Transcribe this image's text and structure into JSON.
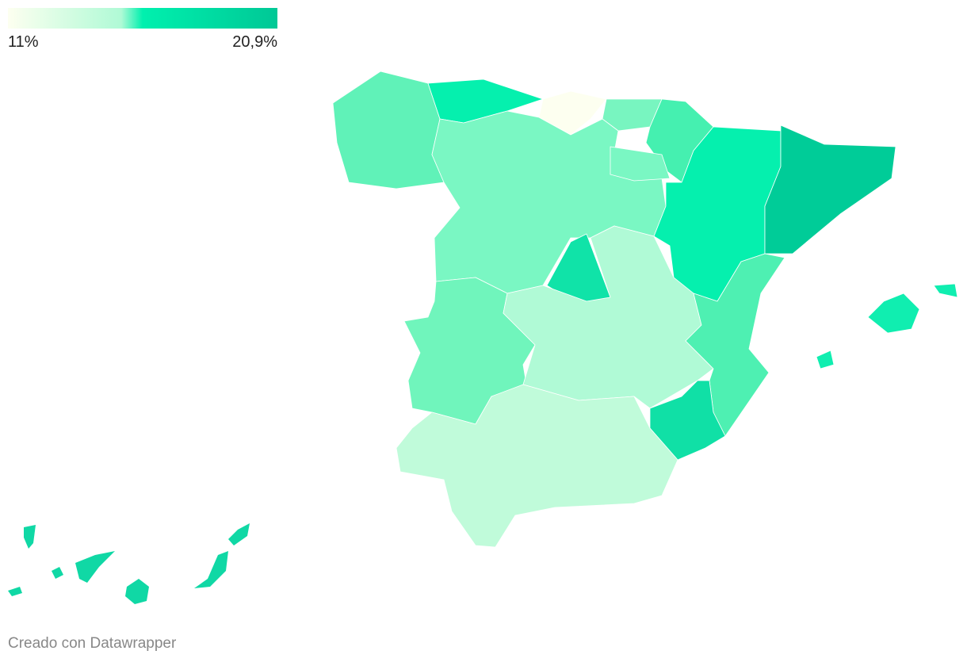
{
  "legend": {
    "min": {
      "value": 11,
      "label": "11%"
    },
    "max": {
      "value": 20.9,
      "label": "20,9%"
    }
  },
  "footer": "Creado con Datawrapper"
}
